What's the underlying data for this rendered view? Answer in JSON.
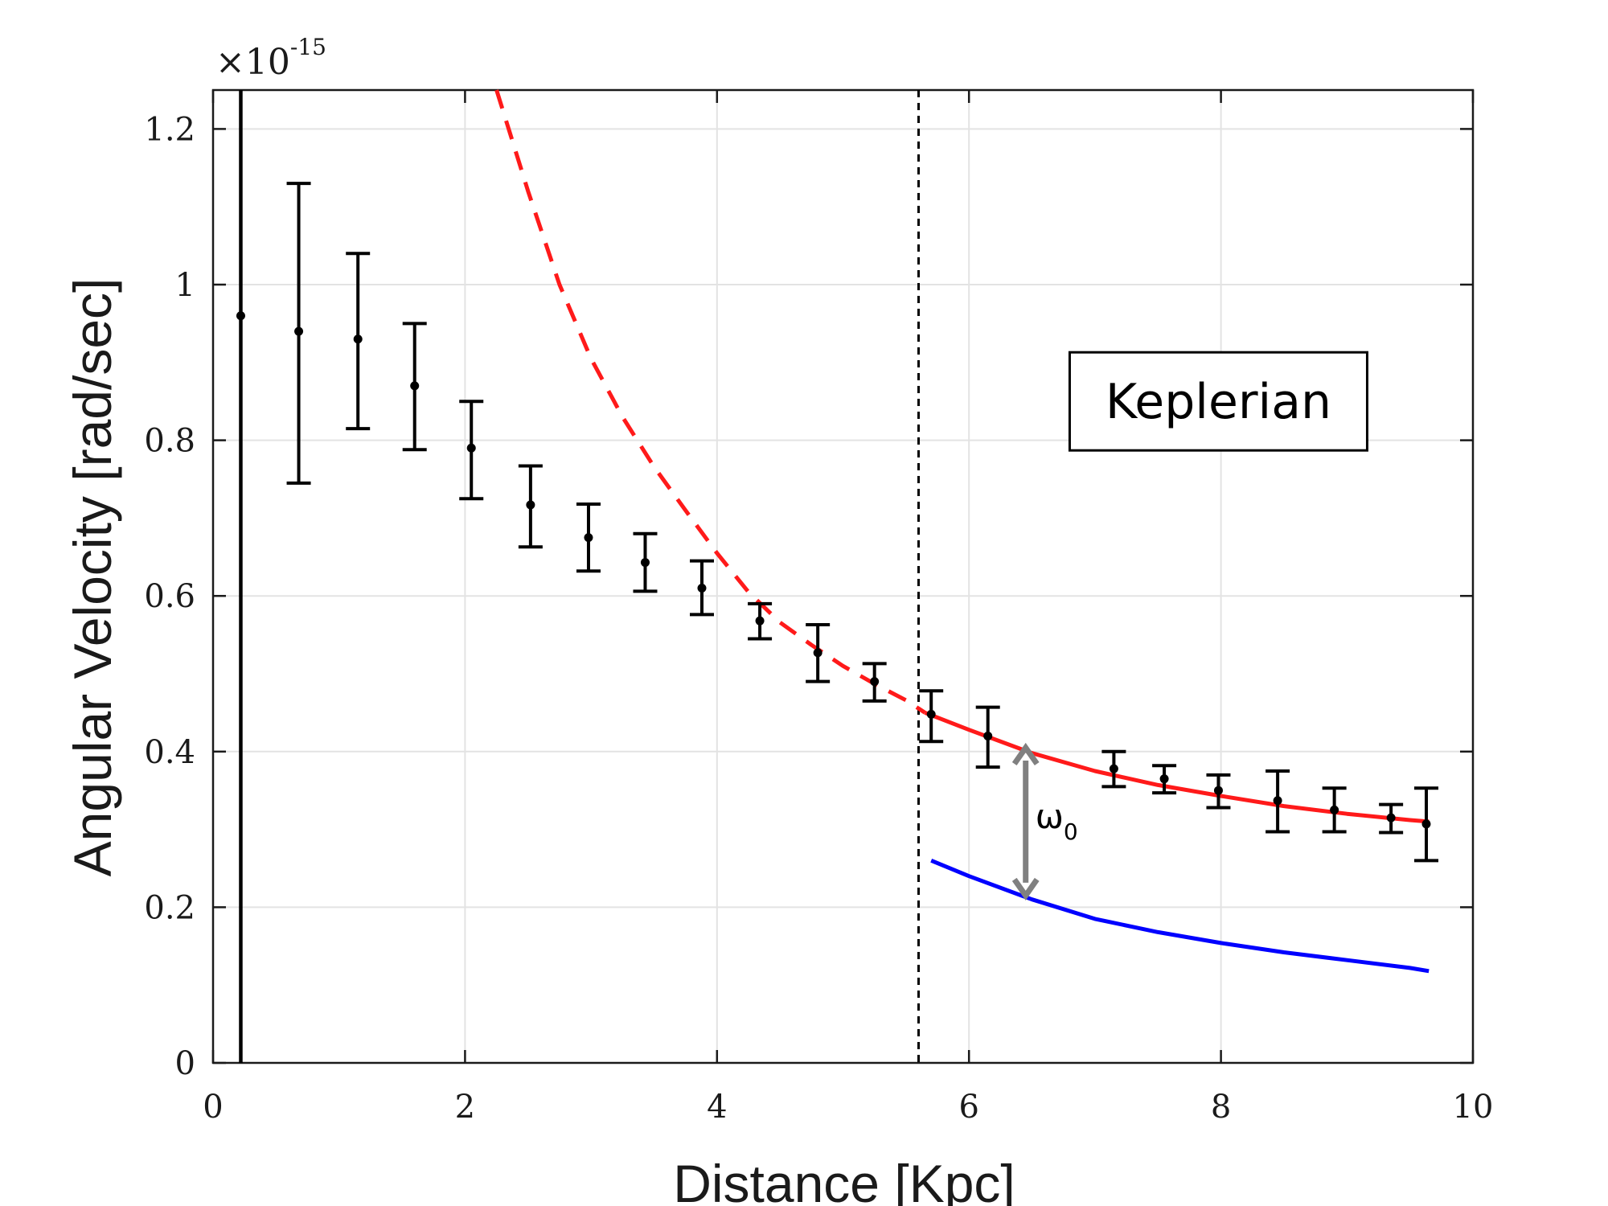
{
  "chart_data": {
    "type": "scatter",
    "xlabel": "Distance [Kpc]",
    "ylabel": "Angular Velocity [rad/sec]",
    "y_exponent_label": "×10",
    "y_exponent_power": "-15",
    "xlim": [
      0,
      10
    ],
    "ylim": [
      0,
      1.25
    ],
    "xticks": [
      "0",
      "2",
      "4",
      "6",
      "8",
      "10"
    ],
    "yticks": [
      "0",
      "0.2",
      "0.4",
      "0.6",
      "0.8",
      "1",
      "1.2"
    ],
    "grid": true,
    "series": [
      {
        "kind": "errorbar",
        "color": "#000000",
        "x": [
          0.22,
          0.68,
          1.15,
          1.6,
          2.05,
          2.52,
          2.98,
          3.43,
          3.88,
          4.34,
          4.8,
          5.25,
          5.7,
          6.15,
          7.15,
          7.55,
          7.98,
          8.45,
          8.9,
          9.35,
          9.63
        ],
        "y": [
          0.96,
          0.94,
          0.93,
          0.87,
          0.79,
          0.717,
          0.675,
          0.643,
          0.61,
          0.568,
          0.527,
          0.49,
          0.448,
          0.42,
          0.378,
          0.365,
          0.35,
          0.337,
          0.325,
          0.315,
          0.307
        ],
        "err_low": [
          null,
          0.745,
          0.815,
          0.788,
          0.725,
          0.663,
          0.632,
          0.606,
          0.576,
          0.545,
          0.49,
          0.465,
          0.413,
          0.38,
          0.355,
          0.347,
          0.328,
          0.297,
          0.297,
          0.296,
          0.26
        ],
        "err_high": [
          null,
          1.13,
          1.04,
          0.95,
          0.85,
          0.767,
          0.718,
          0.68,
          0.645,
          0.59,
          0.563,
          0.513,
          0.478,
          0.457,
          0.4,
          0.382,
          0.37,
          0.375,
          0.353,
          0.332,
          0.353
        ]
      },
      {
        "kind": "curve",
        "style": "dashed",
        "color": "#ff1a1a",
        "x": [
          2.25,
          2.5,
          2.75,
          3.0,
          3.25,
          3.5,
          3.75,
          4.0,
          4.25,
          4.5,
          4.75,
          5.0,
          5.25,
          5.5,
          5.65
        ],
        "y": [
          1.25,
          1.12,
          1.0,
          0.905,
          0.83,
          0.766,
          0.71,
          0.655,
          0.605,
          0.566,
          0.537,
          0.51,
          0.487,
          0.466,
          0.45
        ]
      },
      {
        "kind": "curve",
        "style": "solid",
        "color": "#ff1a1a",
        "x": [
          5.65,
          6.0,
          6.5,
          7.0,
          7.5,
          8.0,
          8.5,
          9.0,
          9.5,
          9.65
        ],
        "y": [
          0.45,
          0.428,
          0.398,
          0.375,
          0.357,
          0.343,
          0.33,
          0.32,
          0.312,
          0.31
        ]
      },
      {
        "kind": "curve",
        "style": "solid",
        "color": "#0000ff",
        "x": [
          5.7,
          6.0,
          6.5,
          7.0,
          7.5,
          8.0,
          8.5,
          9.0,
          9.5,
          9.65
        ],
        "y": [
          0.26,
          0.24,
          0.21,
          0.185,
          0.168,
          0.154,
          0.142,
          0.132,
          0.122,
          0.118
        ]
      }
    ],
    "reference_lines": [
      {
        "kind": "vertical",
        "x": 0.22,
        "style": "solid",
        "color": "#000000"
      },
      {
        "kind": "vertical",
        "x": 5.6,
        "style": "dashed",
        "color": "#000000"
      }
    ],
    "annotations": [
      {
        "kind": "box",
        "text": "Keplerian",
        "x": 7.98,
        "y": 0.85
      },
      {
        "kind": "double-arrow",
        "label": "ω",
        "label_sub": "0",
        "x": 6.45,
        "y_from": 0.405,
        "y_to": 0.215,
        "color": "#808080"
      }
    ]
  }
}
